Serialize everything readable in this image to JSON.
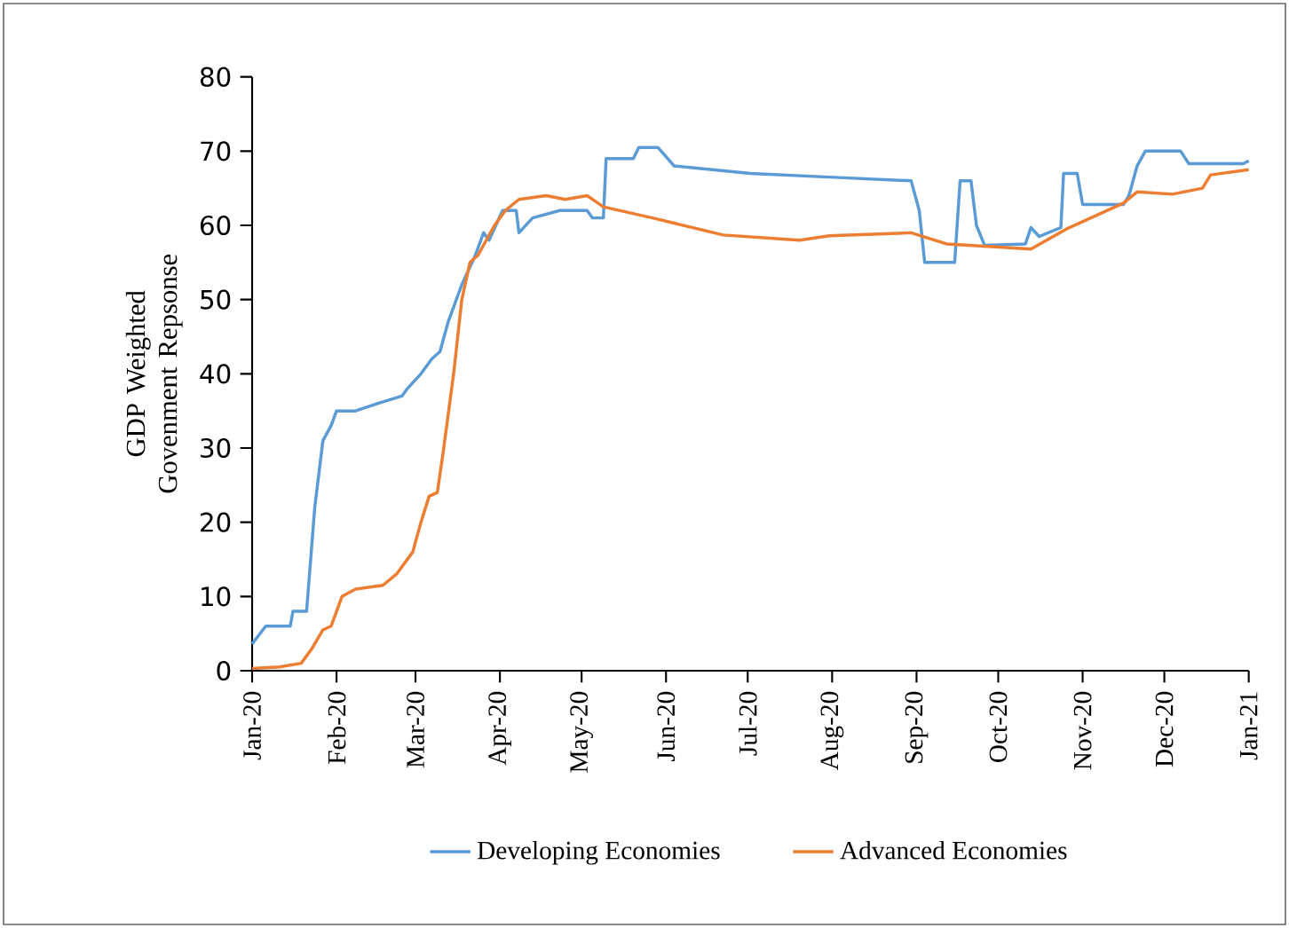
{
  "chart_data": {
    "type": "line",
    "ylabel": "GDP Weighted Govenment Repsonse",
    "xlim": [
      "2020-01-01",
      "2021-01-01"
    ],
    "ylim": [
      0,
      80
    ],
    "yticks": [
      0,
      10,
      20,
      30,
      40,
      50,
      60,
      70,
      80
    ],
    "xticks": [
      {
        "value": "2020-01-01",
        "label": "Jan-20"
      },
      {
        "value": "2020-02-01",
        "label": "Feb-20"
      },
      {
        "value": "2020-03-01",
        "label": "Mar-20"
      },
      {
        "value": "2020-04-01",
        "label": "Apr-20"
      },
      {
        "value": "2020-05-01",
        "label": "May-20"
      },
      {
        "value": "2020-06-01",
        "label": "Jun-20"
      },
      {
        "value": "2020-07-01",
        "label": "Jul-20"
      },
      {
        "value": "2020-08-01",
        "label": "Aug-20"
      },
      {
        "value": "2020-09-01",
        "label": "Sep-20"
      },
      {
        "value": "2020-10-01",
        "label": "Oct-20"
      },
      {
        "value": "2020-11-01",
        "label": "Nov-20"
      },
      {
        "value": "2020-12-01",
        "label": "Dec-20"
      },
      {
        "value": "2021-01-01",
        "label": "Jan-21"
      }
    ],
    "grid": false,
    "legend": "bottom",
    "marker": "none",
    "line_style": "solid",
    "series": [
      {
        "name": "Developing Economies",
        "color": "#5b9bd5",
        "x": [
          "2020-01-01",
          "2020-01-06",
          "2020-01-15",
          "2020-01-16",
          "2020-01-21",
          "2020-01-24",
          "2020-01-27",
          "2020-01-30",
          "2020-02-01",
          "2020-02-08",
          "2020-02-16",
          "2020-02-25",
          "2020-02-27",
          "2020-03-03",
          "2020-03-07",
          "2020-03-10",
          "2020-03-13",
          "2020-03-18",
          "2020-03-23",
          "2020-03-26",
          "2020-03-28",
          "2020-04-02",
          "2020-04-07",
          "2020-04-08",
          "2020-04-13",
          "2020-04-23",
          "2020-05-03",
          "2020-05-05",
          "2020-05-09",
          "2020-05-10",
          "2020-05-20",
          "2020-05-22",
          "2020-05-29",
          "2020-06-04",
          "2020-07-02",
          "2020-07-31",
          "2020-08-30",
          "2020-09-02",
          "2020-09-04",
          "2020-09-15",
          "2020-09-17",
          "2020-09-21",
          "2020-09-23",
          "2020-09-26",
          "2020-10-11",
          "2020-10-13",
          "2020-10-16",
          "2020-10-24",
          "2020-10-25",
          "2020-10-30",
          "2020-11-01",
          "2020-11-16",
          "2020-11-18",
          "2020-11-21",
          "2020-11-24",
          "2020-12-07",
          "2020-12-10",
          "2020-12-30",
          "2021-01-01"
        ],
        "values": [
          3.6,
          6,
          6,
          8,
          8,
          22,
          31,
          33,
          35,
          35,
          36,
          37,
          38,
          40,
          42,
          43,
          47,
          52,
          56,
          59,
          58,
          62,
          62,
          59,
          61,
          62,
          62,
          61,
          61,
          69,
          69,
          70.5,
          70.5,
          68,
          67,
          66.5,
          66,
          62,
          55,
          55,
          66,
          66,
          60,
          57.3,
          57.5,
          59.7,
          58.5,
          59.7,
          67,
          67,
          62.8,
          62.8,
          64,
          68,
          70,
          70,
          68.3,
          68.3,
          68.7
        ]
      },
      {
        "name": "Advanced Economies",
        "color": "#ed7d31",
        "x": [
          "2020-01-01",
          "2020-01-11",
          "2020-01-19",
          "2020-01-23",
          "2020-01-27",
          "2020-01-30",
          "2020-02-03",
          "2020-02-08",
          "2020-02-18",
          "2020-02-23",
          "2020-02-29",
          "2020-03-03",
          "2020-03-06",
          "2020-03-09",
          "2020-03-11",
          "2020-03-15",
          "2020-03-18",
          "2020-03-21",
          "2020-03-24",
          "2020-03-30",
          "2020-04-03",
          "2020-04-08",
          "2020-04-18",
          "2020-04-25",
          "2020-05-03",
          "2020-05-09",
          "2020-05-27",
          "2020-06-22",
          "2020-07-20",
          "2020-07-31",
          "2020-08-30",
          "2020-09-12",
          "2020-10-04",
          "2020-10-13",
          "2020-10-26",
          "2020-11-16",
          "2020-11-21",
          "2020-12-04",
          "2020-12-15",
          "2020-12-18",
          "2021-01-01"
        ],
        "values": [
          0.3,
          0.5,
          1,
          3,
          5.5,
          6,
          10,
          11,
          11.5,
          13,
          16,
          20,
          23.5,
          24,
          29,
          40,
          50,
          55,
          56,
          60,
          62,
          63.5,
          64,
          63.5,
          64,
          62.5,
          61,
          58.7,
          58,
          58.6,
          59,
          57.5,
          57,
          56.8,
          59.5,
          63,
          64.5,
          64.2,
          65,
          66.8,
          67.5
        ]
      }
    ]
  }
}
